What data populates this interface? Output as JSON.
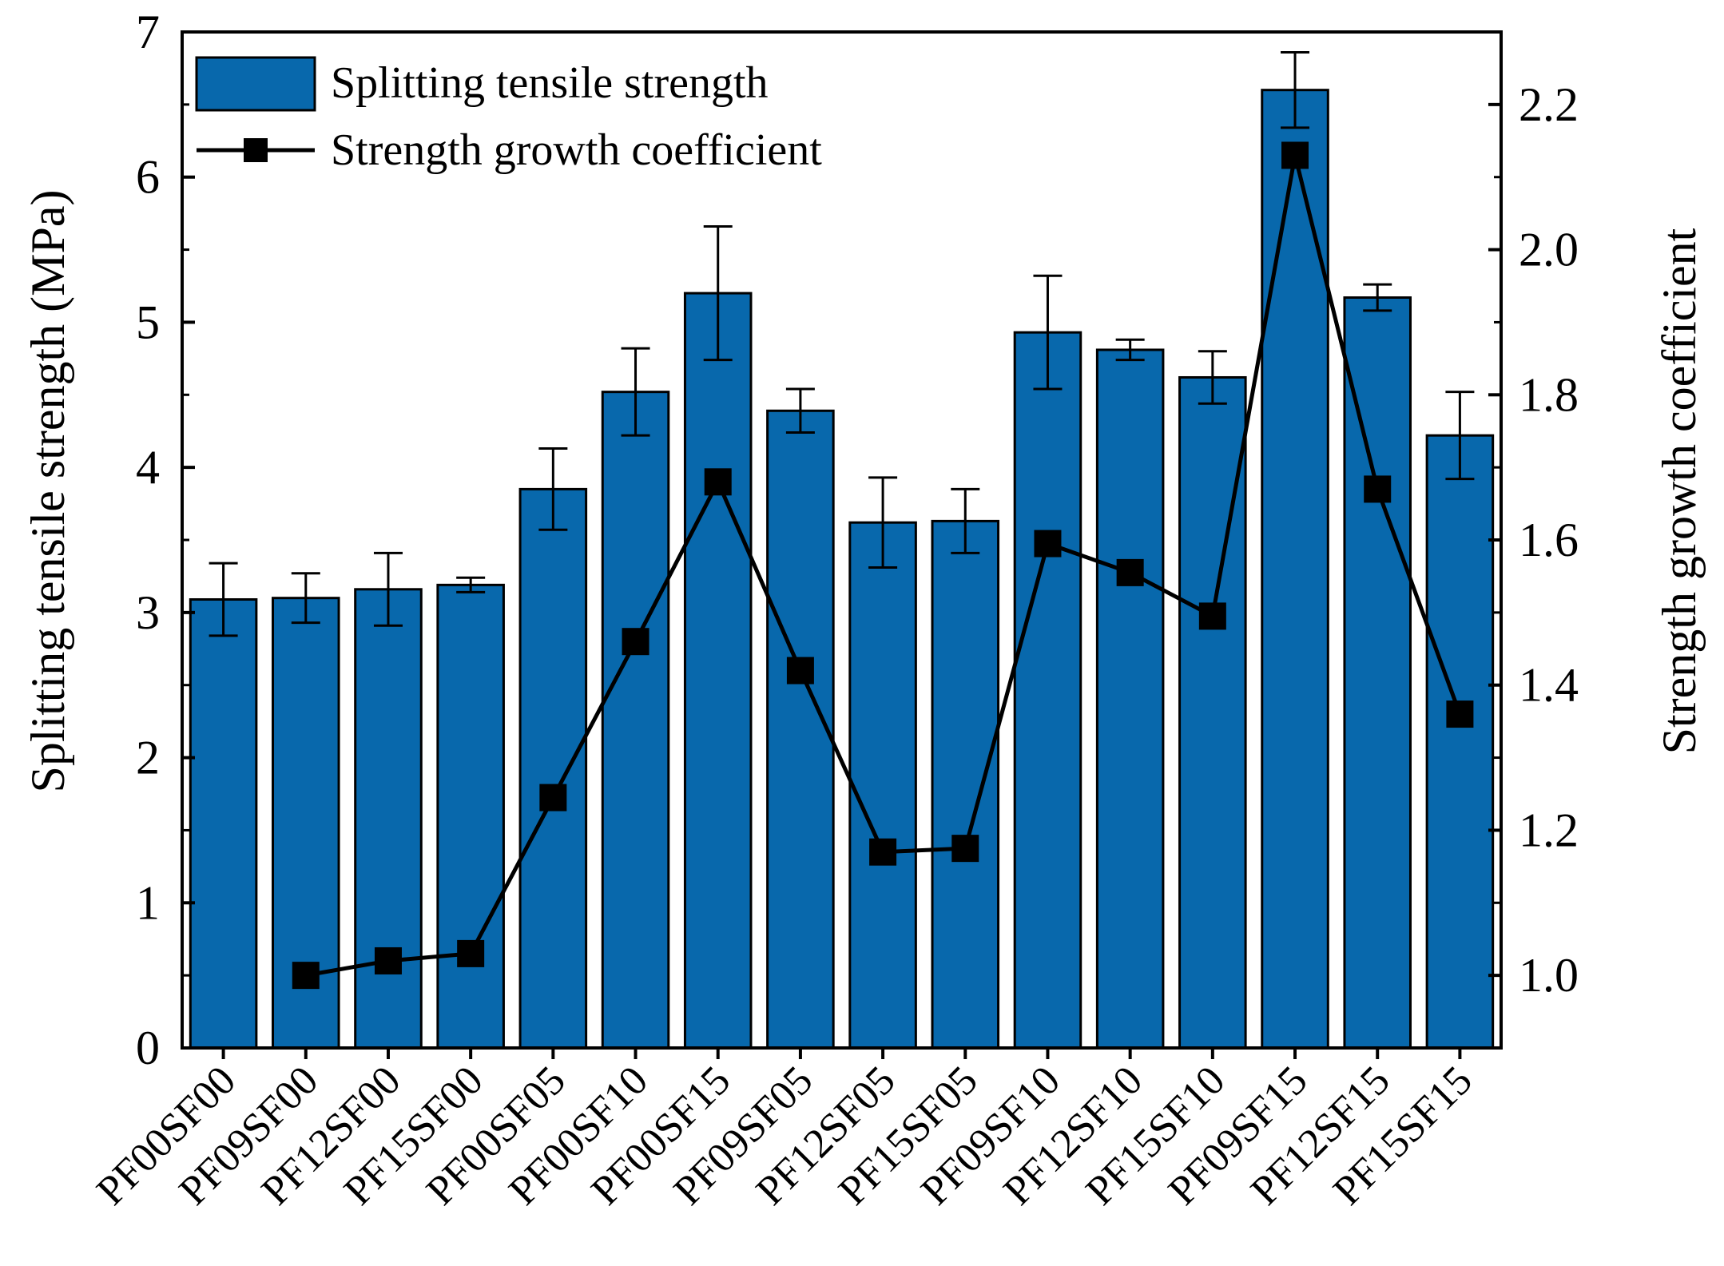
{
  "chart_data": {
    "type": "bar+line",
    "categories": [
      "PF00SF00",
      "PF09SF00",
      "PF12SF00",
      "PF15SF00",
      "PF00SF05",
      "PF00SF10",
      "PF00SF15",
      "PF09SF05",
      "PF12SF05",
      "PF15SF05",
      "PF09SF10",
      "PF12SF10",
      "PF15SF10",
      "PF09SF15",
      "PF12SF15",
      "PF15SF15"
    ],
    "bar_series": {
      "name": "Splitting tensile strength",
      "values": [
        3.09,
        3.1,
        3.16,
        3.19,
        3.85,
        4.52,
        5.2,
        4.39,
        3.62,
        3.63,
        4.93,
        4.81,
        4.62,
        6.6,
        5.17,
        4.22
      ],
      "errors": [
        0.25,
        0.17,
        0.25,
        0.05,
        0.28,
        0.3,
        0.46,
        0.15,
        0.31,
        0.22,
        0.39,
        0.07,
        0.18,
        0.26,
        0.09,
        0.3
      ],
      "color": "#0868ac"
    },
    "line_series": {
      "name": "Strength growth coefficient",
      "values": [
        null,
        1.0,
        1.02,
        1.03,
        1.245,
        1.46,
        1.68,
        1.42,
        1.17,
        1.175,
        1.595,
        1.555,
        1.495,
        2.13,
        1.67,
        1.36
      ],
      "color": "#000000"
    },
    "ylabel": "Splitting tensile strength (MPa)",
    "y2label": "Strength growth coefficient",
    "ylim": [
      0,
      7
    ],
    "y2lim": [
      0.9,
      2.3
    ],
    "yticks": [
      0,
      1,
      2,
      3,
      4,
      5,
      6,
      7
    ],
    "y2ticks": [
      "1.0",
      "1.2",
      "1.4",
      "1.6",
      "1.8",
      "2.0",
      "2.2"
    ],
    "legend": {
      "placement": "top-left",
      "entries": [
        "Splitting tensile strength",
        "Strength growth coefficient"
      ]
    },
    "grid": false
  }
}
